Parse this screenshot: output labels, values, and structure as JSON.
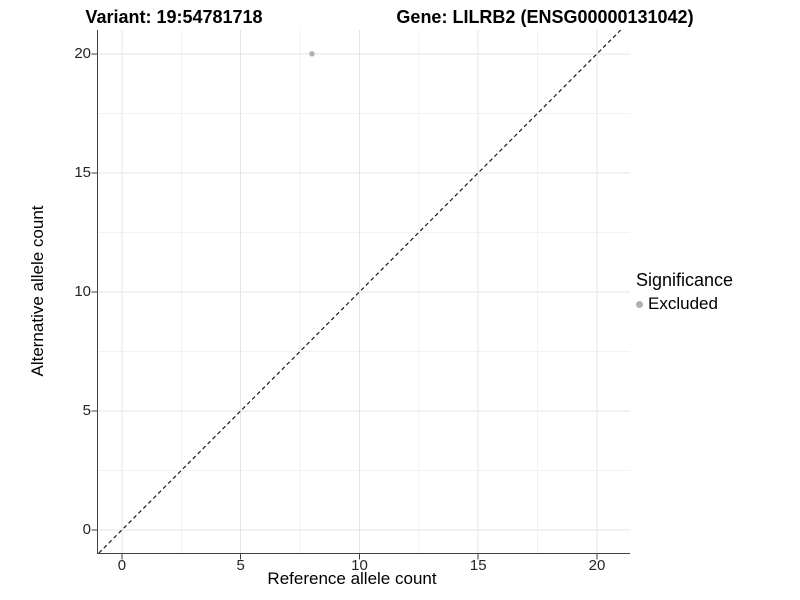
{
  "chart_data": {
    "type": "scatter",
    "title_left": "Variant: 19:54781718",
    "title_right": "Gene: LILRB2 (ENSG00000131042)",
    "xlabel": "Reference allele count",
    "ylabel": "Alternative allele count",
    "xlim": [
      -1.05,
      21.39
    ],
    "ylim": [
      -0.97,
      21.0
    ],
    "x_major_ticks": [
      0,
      5,
      10,
      15,
      20
    ],
    "x_minor_ticks": [
      2.5,
      7.5,
      12.5,
      17.5
    ],
    "y_major_ticks": [
      0,
      5,
      10,
      15,
      20
    ],
    "y_minor_ticks": [
      2.5,
      7.5,
      12.5,
      17.5
    ],
    "grid": "major+minor",
    "points": [
      {
        "x": 8,
        "y": 20,
        "series": "Excluded"
      }
    ],
    "reference_line": {
      "type": "identity y=x",
      "style": "dashed",
      "color": "#1a1a1a"
    },
    "legend": {
      "title": "Significance",
      "position": "right",
      "items": [
        {
          "label": "Excluded",
          "marker": "circle",
          "color": "#b0b0b0"
        }
      ]
    },
    "style": {
      "point_color": "#b0b0b0",
      "point_radius": 2.7,
      "grid_major_color": "#e5e5e5",
      "grid_minor_color": "#f2f2f2",
      "axis_line_color": "#404040",
      "tick_mark_color": "#404040",
      "tick_label_color": "#262626",
      "background": "#ffffff"
    }
  }
}
